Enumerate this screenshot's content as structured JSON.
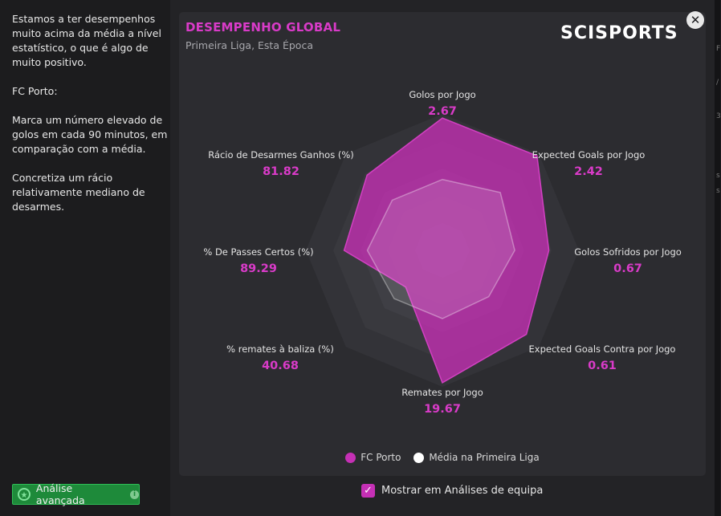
{
  "left_panel": {
    "text": "Estamos a ter desempenhos muito acima da média a nível estatístico, o que é algo de muito positivo.\n\nFC Porto:\n\nMarca um número elevado de golos em cada 90 minutos, em comparação com a média.\n\nConcretiza um rácio relativamente mediano de desarmes."
  },
  "card": {
    "title": "DESEMPENHO GLOBAL",
    "subtitle": "Primeira Liga, Esta Época",
    "logo": "SCISPORTS"
  },
  "close_glyph": "✕",
  "chart_data": {
    "type": "radar",
    "axes": [
      {
        "label": "Golos por Jogo",
        "value": "2.67"
      },
      {
        "label": "Expected Goals por Jogo",
        "value": "2.42"
      },
      {
        "label": "Golos Sofridos por Jogo",
        "value": "0.67"
      },
      {
        "label": "Expected Goals Contra por Jogo",
        "value": "0.61"
      },
      {
        "label": "Remates por Jogo",
        "value": "19.67"
      },
      {
        "label": "% remates à baliza (%)",
        "value": "40.68"
      },
      {
        "label": "% De Passes Certos (%)",
        "value": "89.29"
      },
      {
        "label": "Rácio de Desarmes Ganhos (%)",
        "value": "81.82"
      }
    ],
    "series": [
      {
        "name": "FC Porto",
        "color": "#c530b5",
        "normalized": [
          0.97,
          0.98,
          0.78,
          0.87,
          0.97,
          0.38,
          0.72,
          0.78
        ]
      },
      {
        "name": "Média na Primeira Liga",
        "color": "#ffffff",
        "normalized": [
          0.52,
          0.6,
          0.53,
          0.48,
          0.5,
          0.5,
          0.55,
          0.52
        ]
      }
    ]
  },
  "legend": [
    {
      "name": "FC Porto",
      "color": "#c530b5"
    },
    {
      "name": "Média na Primeira Liga",
      "color": "#ffffff"
    }
  ],
  "buttons": {
    "advanced": "Análise avançada"
  },
  "checkbox": {
    "label": "Mostrar em Análises de equipa",
    "checked": true
  },
  "bg_strip_chars": [
    "F",
    "/",
    "3",
    "s",
    "s"
  ],
  "colors": {
    "accent": "#d93bc8",
    "value": "#d93bc8",
    "green": "#1e8a3a"
  }
}
